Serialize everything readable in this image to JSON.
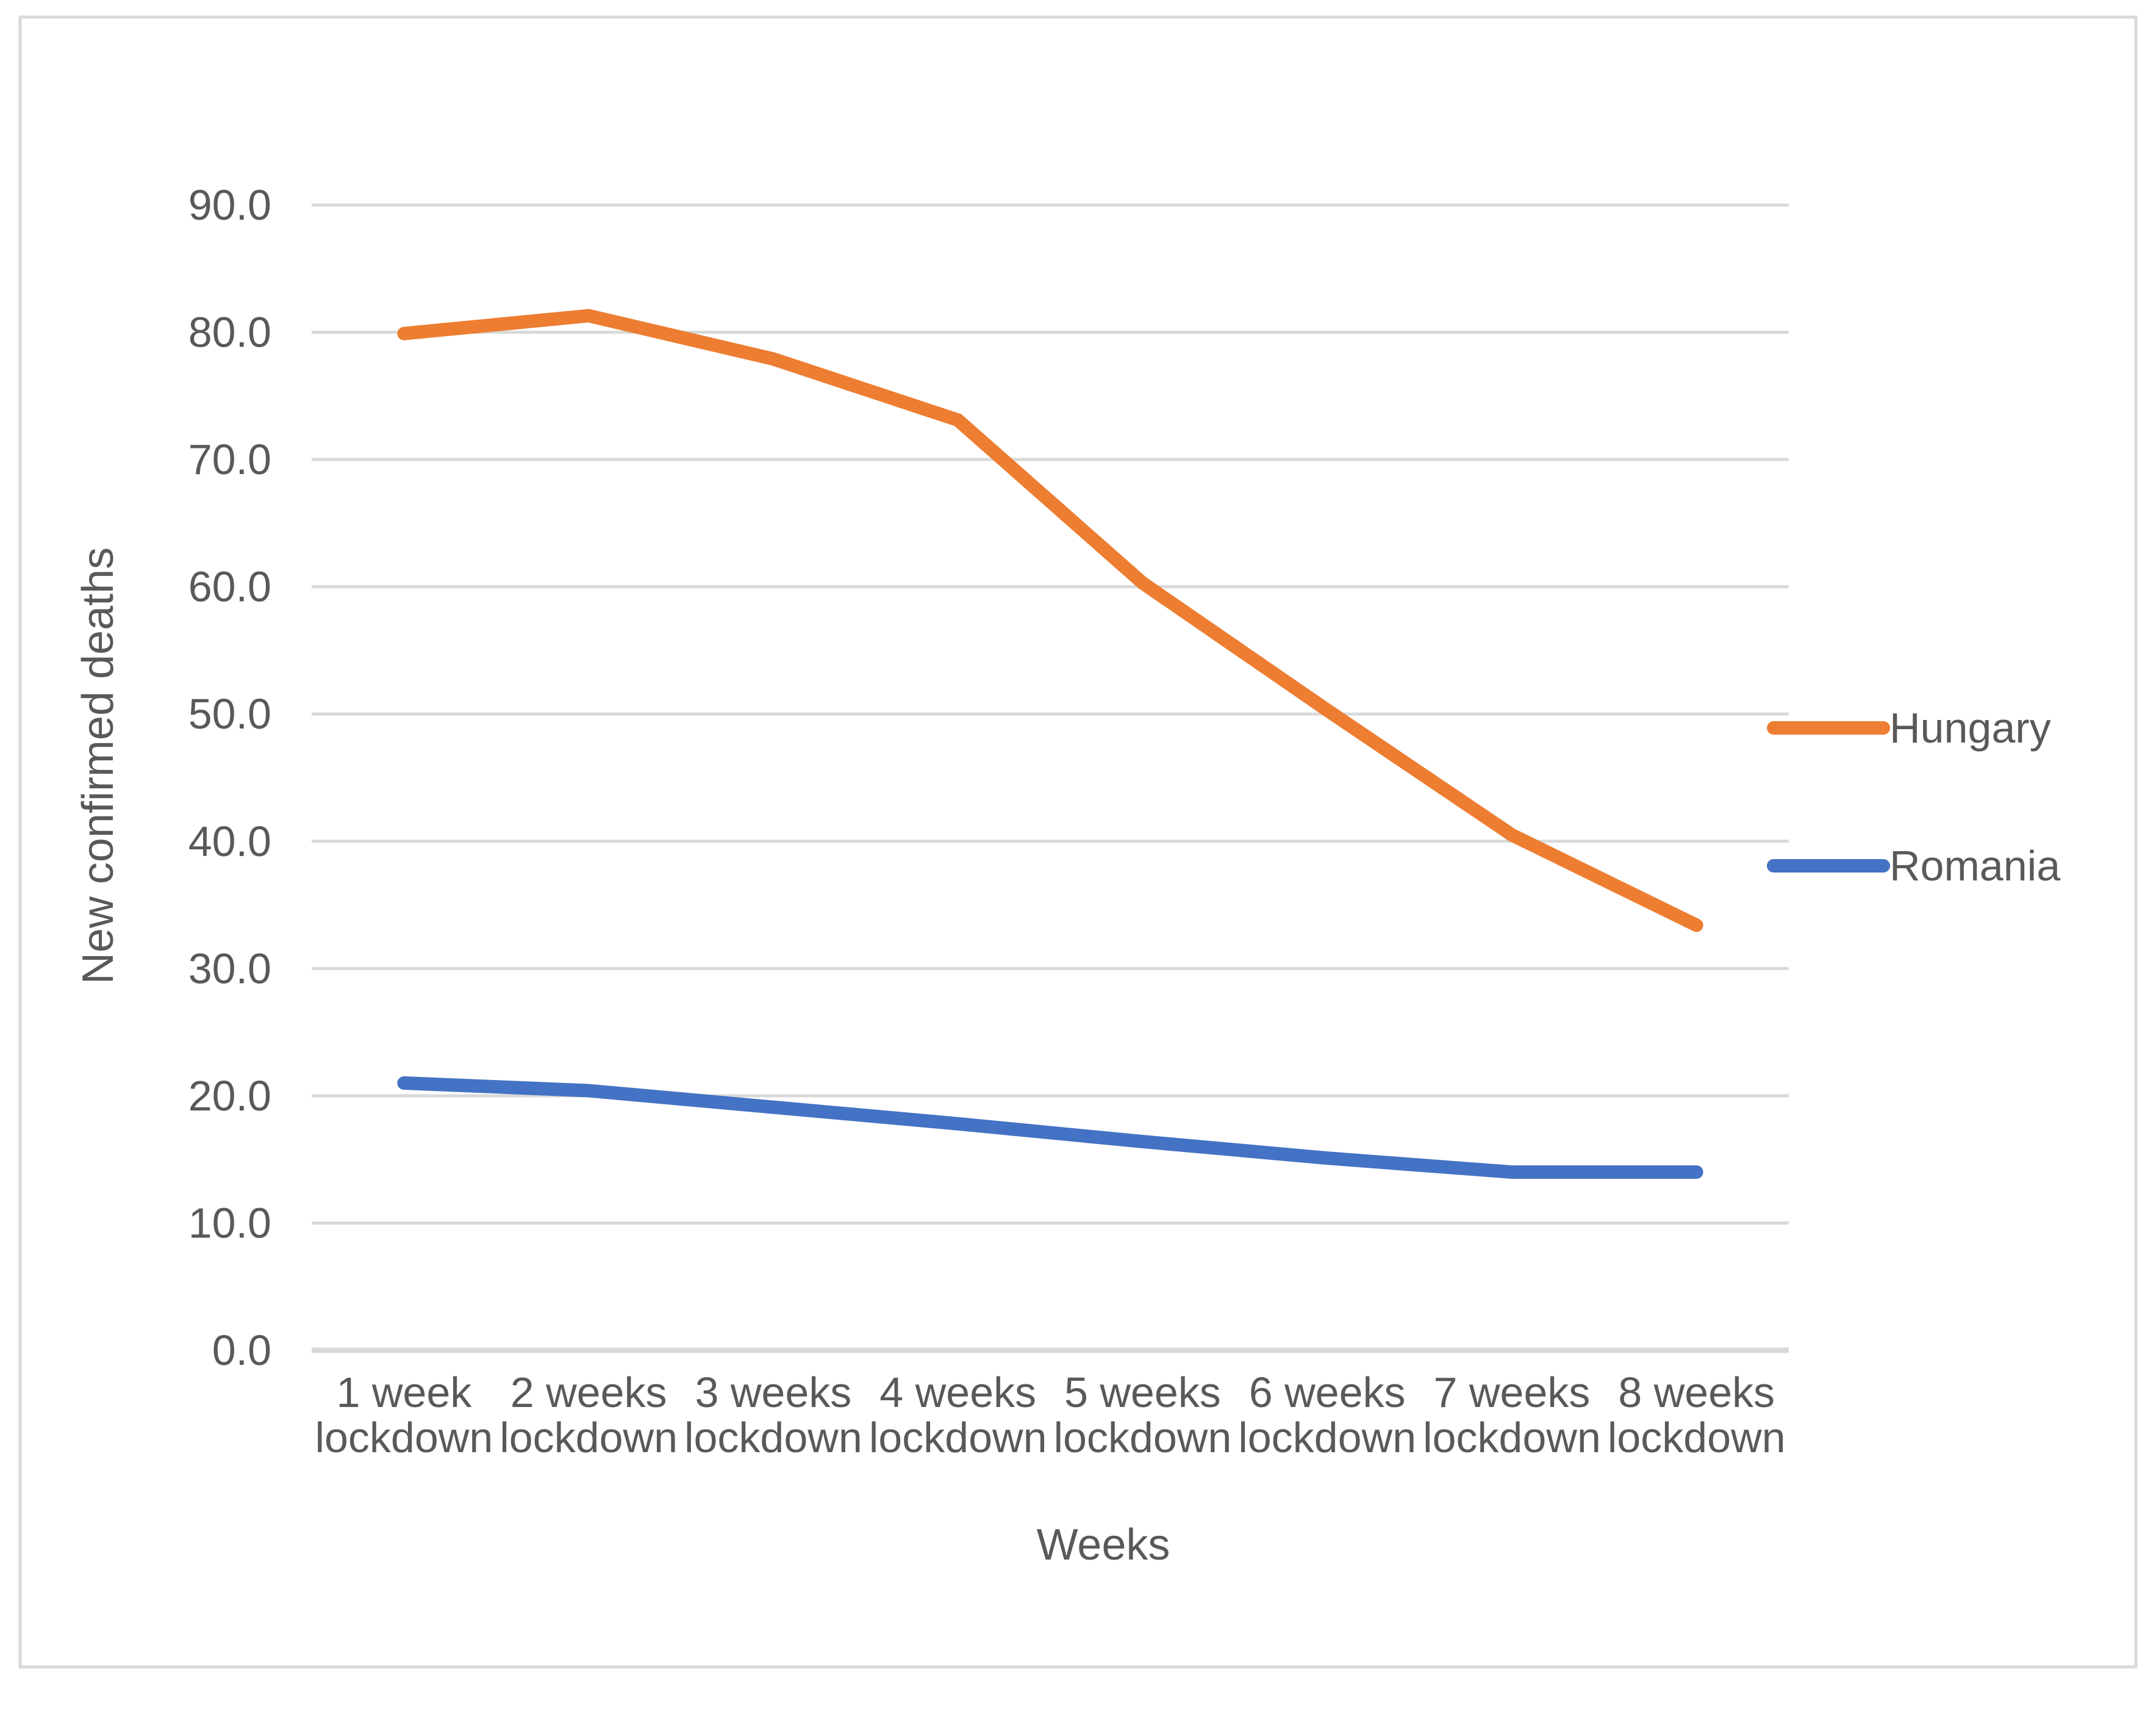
{
  "colors": {
    "background": "#FFFFFF",
    "border": "#D9D9D9",
    "gridline": "#D9D9D9",
    "axis_line": "#D9D9D9",
    "text": "#595959"
  },
  "chart_data": {
    "type": "line",
    "title": "",
    "xlabel": "Weeks",
    "ylabel": "New confirmed deaths",
    "ylim": [
      0,
      90
    ],
    "ytick_step": 10,
    "grid": true,
    "legend_position": "right",
    "y_tick_labels": [
      "0.0",
      "10.0",
      "20.0",
      "30.0",
      "40.0",
      "50.0",
      "60.0",
      "70.0",
      "80.0",
      "90.0"
    ],
    "categories": [
      {
        "top": "1 week",
        "bottom": "lockdown"
      },
      {
        "top": "2 weeks",
        "bottom": "lockdown"
      },
      {
        "top": "3 weeks",
        "bottom": "lockdown"
      },
      {
        "top": "4 weeks",
        "bottom": "lockdown"
      },
      {
        "top": "5 weeks",
        "bottom": "lockdown"
      },
      {
        "top": "6 weeks",
        "bottom": "lockdown"
      },
      {
        "top": "7 weeks",
        "bottom": "lockdown"
      },
      {
        "top": "8 weeks",
        "bottom": "lockdown"
      }
    ],
    "series": [
      {
        "name": "Hungary",
        "color": "#ED7D31",
        "values": [
          79.9,
          81.3,
          77.9,
          73.1,
          60.3,
          50.3,
          40.5,
          33.4
        ]
      },
      {
        "name": "Romania",
        "color": "#4472C4",
        "values": [
          21.0,
          20.4,
          19.1,
          17.8,
          16.4,
          15.1,
          14.0,
          14.0
        ]
      }
    ]
  }
}
